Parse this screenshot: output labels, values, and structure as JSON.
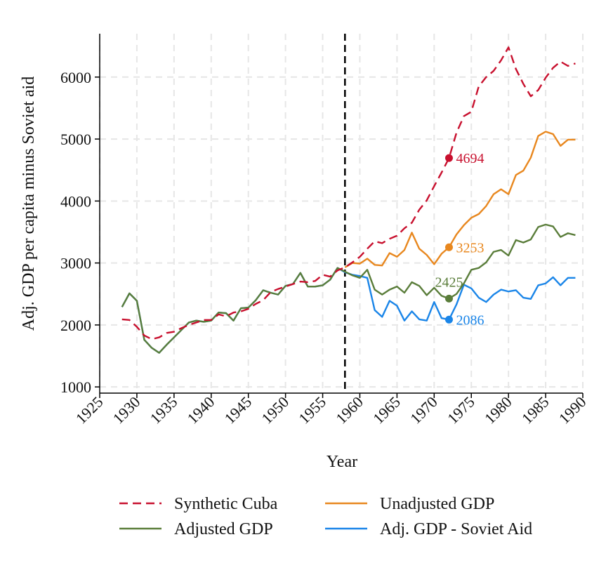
{
  "chart_data": {
    "type": "line",
    "title": "",
    "xlabel": "Year",
    "ylabel": "Adj. GDP per capita minus Soviet aid",
    "xlim": [
      1925,
      1990
    ],
    "ylim": [
      900,
      6700
    ],
    "xticks": [
      1925,
      1930,
      1935,
      1940,
      1945,
      1950,
      1955,
      1960,
      1965,
      1970,
      1975,
      1980,
      1985,
      1990
    ],
    "yticks": [
      1000,
      2000,
      3000,
      4000,
      5000,
      6000
    ],
    "grid": true,
    "vline": {
      "x": 1958,
      "style": "dashed",
      "color": "#000000"
    },
    "legend_position": "bottom",
    "series": [
      {
        "name": "Synthetic Cuba",
        "color": "#c8102e",
        "style": "dashed",
        "x": [
          1928,
          1929,
          1930,
          1931,
          1932,
          1933,
          1934,
          1935,
          1936,
          1937,
          1938,
          1939,
          1940,
          1941,
          1942,
          1943,
          1944,
          1945,
          1946,
          1947,
          1948,
          1949,
          1950,
          1951,
          1952,
          1953,
          1954,
          1955,
          1956,
          1957,
          1958,
          1959,
          1960,
          1961,
          1962,
          1963,
          1964,
          1965,
          1966,
          1967,
          1968,
          1969,
          1970,
          1971,
          1972,
          1973,
          1974,
          1975,
          1976,
          1977,
          1978,
          1979,
          1980,
          1981,
          1982,
          1983,
          1984,
          1985,
          1986,
          1987,
          1988,
          1989
        ],
        "values": [
          2090,
          2080,
          1970,
          1830,
          1770,
          1800,
          1870,
          1890,
          1950,
          2000,
          2040,
          2080,
          2080,
          2170,
          2140,
          2200,
          2220,
          2260,
          2340,
          2400,
          2530,
          2580,
          2620,
          2660,
          2700,
          2690,
          2710,
          2810,
          2780,
          2880,
          2930,
          3010,
          3100,
          3230,
          3350,
          3320,
          3390,
          3440,
          3560,
          3650,
          3860,
          4010,
          4240,
          4460,
          4694,
          5100,
          5370,
          5440,
          5850,
          6000,
          6100,
          6270,
          6480,
          6130,
          5890,
          5690,
          5790,
          5990,
          6150,
          6250,
          6180,
          6220
        ]
      },
      {
        "name": "Unadjusted GDP",
        "color": "#e8871e",
        "style": "solid",
        "x": [
          1958,
          1959,
          1960,
          1961,
          1962,
          1963,
          1964,
          1965,
          1966,
          1967,
          1968,
          1969,
          1970,
          1971,
          1972,
          1973,
          1974,
          1975,
          1976,
          1977,
          1978,
          1979,
          1980,
          1981,
          1982,
          1983,
          1984,
          1985,
          1986,
          1987,
          1988,
          1989
        ],
        "values": [
          2930,
          3000,
          2990,
          3070,
          2970,
          2960,
          3160,
          3100,
          3210,
          3490,
          3230,
          3130,
          2980,
          3150,
          3253,
          3460,
          3610,
          3730,
          3790,
          3920,
          4110,
          4190,
          4110,
          4420,
          4490,
          4700,
          5050,
          5120,
          5080,
          4890,
          4990,
          4990
        ]
      },
      {
        "name": "Adjusted GDP",
        "color": "#5a7d3a",
        "style": "solid",
        "x": [
          1928,
          1929,
          1930,
          1931,
          1932,
          1933,
          1934,
          1935,
          1936,
          1937,
          1938,
          1939,
          1940,
          1941,
          1942,
          1943,
          1944,
          1945,
          1946,
          1947,
          1948,
          1949,
          1950,
          1951,
          1952,
          1953,
          1954,
          1955,
          1956,
          1957,
          1958,
          1959,
          1960,
          1961,
          1962,
          1963,
          1964,
          1965,
          1966,
          1967,
          1968,
          1969,
          1970,
          1971,
          1972,
          1973,
          1974,
          1975,
          1976,
          1977,
          1978,
          1979,
          1980,
          1981,
          1982,
          1983,
          1984,
          1985,
          1986,
          1987,
          1988,
          1989
        ],
        "values": [
          2290,
          2510,
          2390,
          1760,
          1630,
          1550,
          1680,
          1800,
          1920,
          2040,
          2070,
          2050,
          2070,
          2200,
          2190,
          2070,
          2270,
          2280,
          2400,
          2560,
          2520,
          2490,
          2630,
          2660,
          2840,
          2620,
          2620,
          2640,
          2730,
          2920,
          2860,
          2800,
          2760,
          2890,
          2570,
          2490,
          2570,
          2620,
          2520,
          2690,
          2630,
          2480,
          2600,
          2470,
          2425,
          2500,
          2670,
          2890,
          2920,
          3010,
          3180,
          3210,
          3120,
          3370,
          3330,
          3380,
          3580,
          3620,
          3590,
          3420,
          3480,
          3450
        ]
      },
      {
        "name": "Adj. GDP - Soviet Aid",
        "color": "#1a85e8",
        "style": "solid",
        "x": [
          1928,
          1929,
          1930,
          1931,
          1932,
          1933,
          1934,
          1935,
          1936,
          1937,
          1938,
          1939,
          1940,
          1941,
          1942,
          1943,
          1944,
          1945,
          1946,
          1947,
          1948,
          1949,
          1950,
          1951,
          1952,
          1953,
          1954,
          1955,
          1956,
          1957,
          1958,
          1959,
          1960,
          1961,
          1962,
          1963,
          1964,
          1965,
          1966,
          1967,
          1968,
          1969,
          1970,
          1971,
          1972,
          1973,
          1974,
          1975,
          1976,
          1977,
          1978,
          1979,
          1980,
          1981,
          1982,
          1983,
          1984,
          1985,
          1986,
          1987,
          1988,
          1989
        ],
        "values": [
          2290,
          2510,
          2390,
          1760,
          1630,
          1550,
          1680,
          1800,
          1920,
          2040,
          2070,
          2050,
          2070,
          2200,
          2190,
          2070,
          2270,
          2280,
          2400,
          2560,
          2520,
          2490,
          2630,
          2660,
          2840,
          2620,
          2620,
          2640,
          2730,
          2920,
          2850,
          2810,
          2790,
          2760,
          2240,
          2130,
          2390,
          2310,
          2070,
          2220,
          2090,
          2070,
          2370,
          2110,
          2086,
          2330,
          2650,
          2590,
          2440,
          2370,
          2490,
          2570,
          2540,
          2560,
          2440,
          2420,
          2640,
          2670,
          2770,
          2640,
          2760,
          2760
        ]
      }
    ],
    "annotations": [
      {
        "series": "Synthetic Cuba",
        "x": 1972,
        "y": 4694,
        "label": "4694",
        "color": "#c8102e",
        "position": "right"
      },
      {
        "series": "Unadjusted GDP",
        "x": 1972,
        "y": 3253,
        "label": "3253",
        "color": "#e8871e",
        "position": "right"
      },
      {
        "series": "Adjusted GDP",
        "x": 1972,
        "y": 2425,
        "label": "2425",
        "color": "#5a7d3a",
        "position": "above"
      },
      {
        "series": "Adj. GDP - Soviet Aid",
        "x": 1972,
        "y": 2086,
        "label": "2086",
        "color": "#1a85e8",
        "position": "right"
      }
    ],
    "legend": [
      {
        "label": "Synthetic Cuba",
        "color": "#c8102e",
        "style": "dashed"
      },
      {
        "label": "Unadjusted GDP",
        "color": "#e8871e",
        "style": "solid"
      },
      {
        "label": "Adjusted GDP",
        "color": "#5a7d3a",
        "style": "solid"
      },
      {
        "label": "Adj. GDP - Soviet Aid",
        "color": "#1a85e8",
        "style": "solid"
      }
    ]
  }
}
